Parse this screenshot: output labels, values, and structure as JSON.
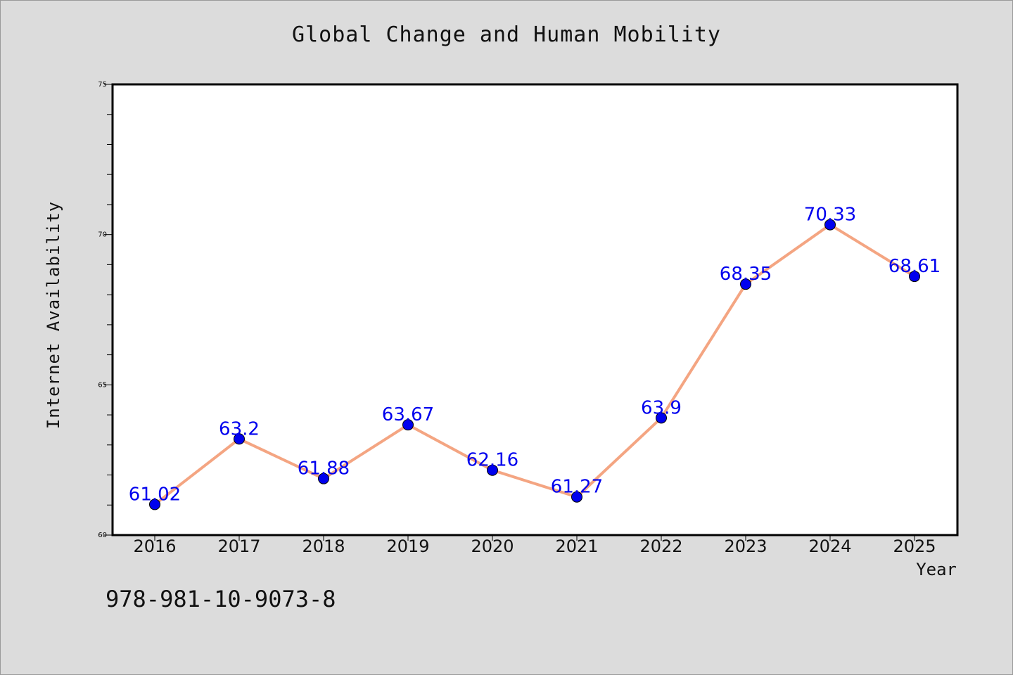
{
  "chart_data": {
    "type": "line",
    "title": "Global Change and Human Mobility",
    "xlabel": "Year",
    "ylabel": "Internet Availability",
    "categories": [
      "2016",
      "2017",
      "2018",
      "2019",
      "2020",
      "2021",
      "2022",
      "2023",
      "2024",
      "2025"
    ],
    "series": [
      {
        "values": [
          61.02,
          63.2,
          61.88,
          63.67,
          62.16,
          61.27,
          63.9,
          68.35,
          70.33,
          68.61
        ],
        "data_labels": [
          "61.02",
          "63.2",
          "61.88",
          "63.67",
          "62.16",
          "61.27",
          "63.9",
          "68.35",
          "70.33",
          "68.61"
        ],
        "line_color": "#f4a582",
        "marker_color": "#0000ee",
        "label_color": "#0000ee"
      }
    ],
    "ylim": [
      60,
      75
    ],
    "y_ticks": [
      "60",
      "65",
      "70",
      "75"
    ],
    "grid": false,
    "legend": "none"
  },
  "footer": {
    "code": "978-981-10-9073-8"
  },
  "colors": {
    "background": "#dcdcdc",
    "plot_background": "#ffffff",
    "axis": "#000000"
  }
}
